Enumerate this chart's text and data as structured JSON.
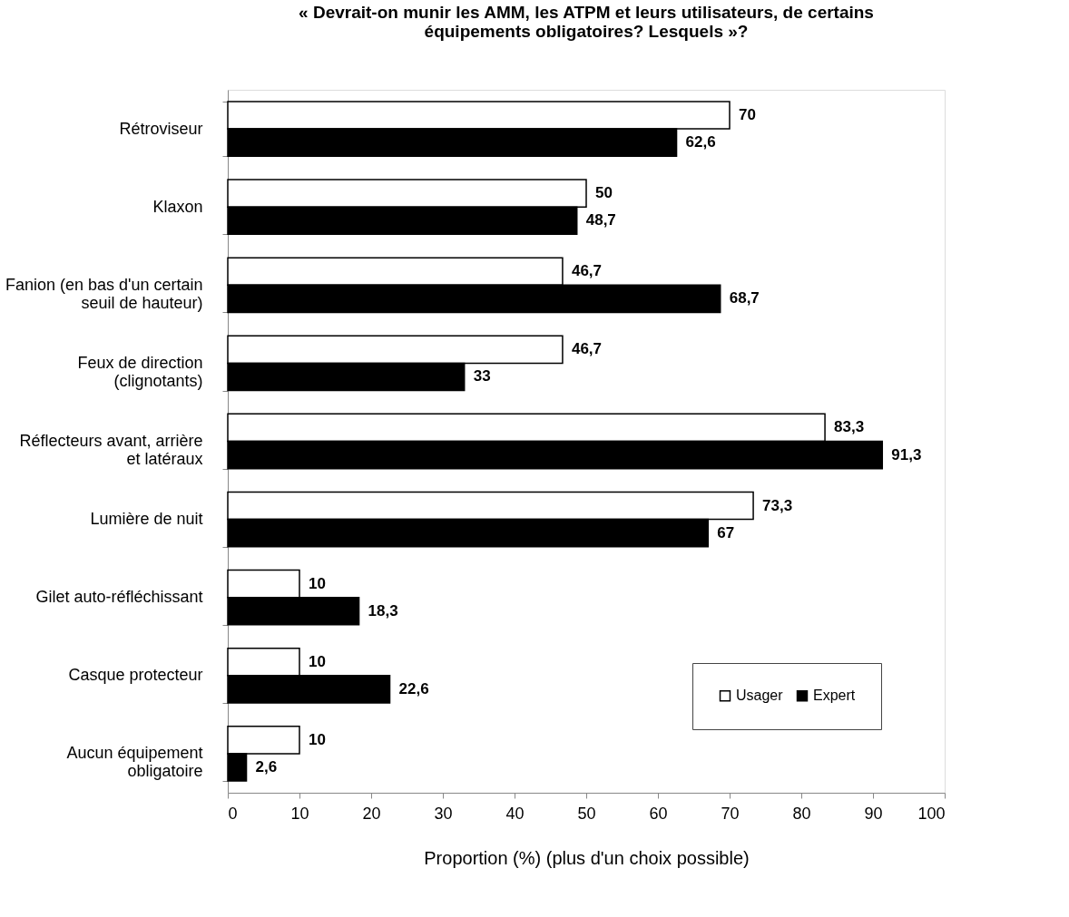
{
  "chart_data": {
    "type": "bar",
    "orientation": "horizontal",
    "title": "« Devrait-on munir les AMM, les ATPM et leurs utilisateurs, de certains équipements obligatoires? Lesquels »?",
    "xlabel": "Proportion (%) (plus d'un choix possible)",
    "categories": [
      "Rétroviseur",
      "Klaxon",
      "Fanion (en bas d'un certain seuil de hauteur)",
      "Feux de direction (clignotants)",
      "Réflecteurs avant, arrière et latéraux",
      "Lumière de nuit",
      "Gilet auto-réfléchissant",
      "Casque protecteur",
      "Aucun équipement obligatoire"
    ],
    "series": [
      {
        "name": "Usager",
        "color": "#ffffff",
        "values": [
          70,
          50,
          46.7,
          46.7,
          83.3,
          73.3,
          10,
          10,
          10
        ],
        "value_labels": [
          "70",
          "50",
          "46,7",
          "46,7",
          "83,3",
          "73,3",
          "10",
          "10",
          "10"
        ]
      },
      {
        "name": "Expert",
        "color": "#000000",
        "values": [
          62.6,
          48.7,
          68.7,
          33,
          91.3,
          67,
          18.3,
          22.6,
          2.6
        ],
        "value_labels": [
          "62,6",
          "48,7",
          "68,7",
          "33",
          "91,3",
          "67",
          "18,3",
          "22,6",
          "2,6"
        ]
      }
    ],
    "xlim": [
      0,
      100
    ],
    "xticks": [
      0,
      10,
      20,
      30,
      40,
      50,
      60,
      70,
      80,
      90,
      100
    ],
    "grid": false,
    "legend": "bottom right"
  }
}
